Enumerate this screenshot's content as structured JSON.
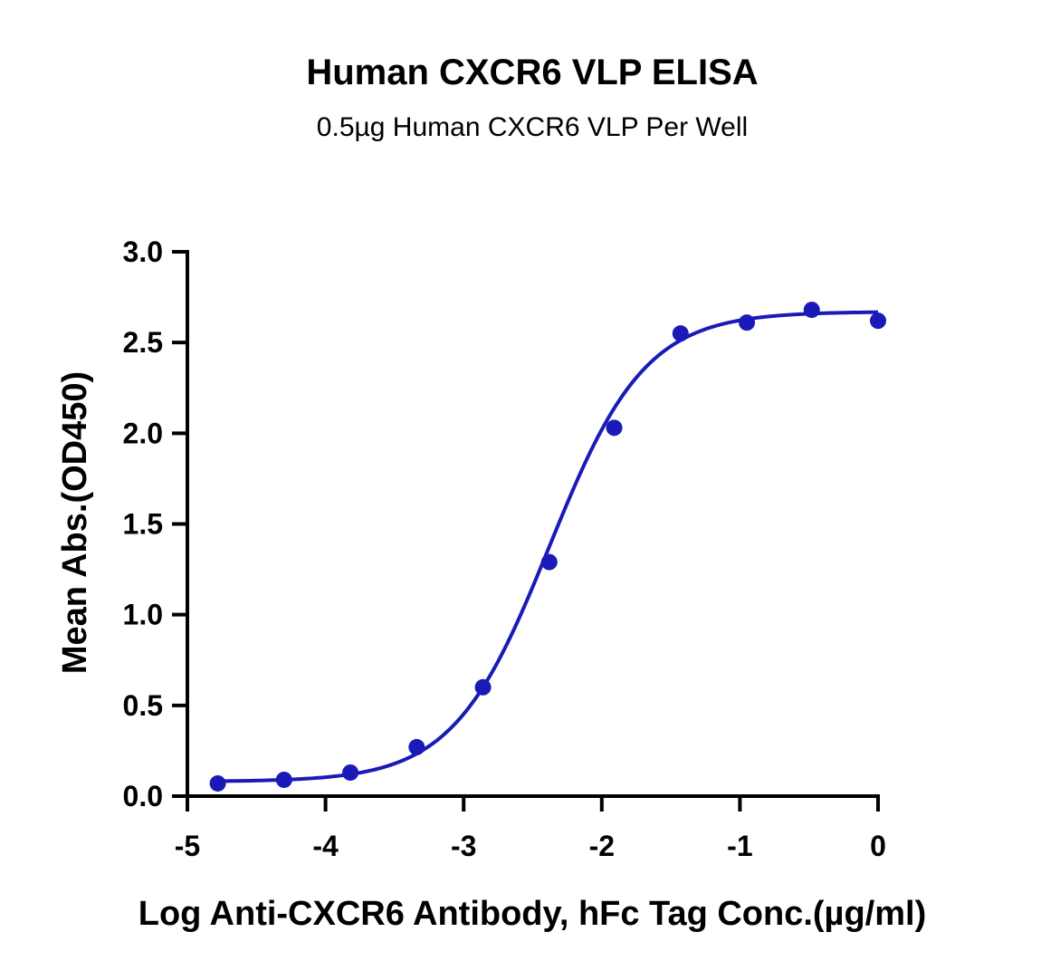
{
  "chart_data": {
    "type": "scatter",
    "title": "Human CXCR6 VLP ELISA",
    "subtitle": "0.5µg Human CXCR6 VLP Per Well",
    "xlabel": "Log Anti-CXCR6 Antibody, hFc Tag Conc.(µg/ml)",
    "ylabel": "Mean Abs.(OD450)",
    "xlim": [
      -5,
      0
    ],
    "ylim": [
      0,
      3
    ],
    "x_ticks": [
      -5,
      -4,
      -3,
      -2,
      -1,
      0
    ],
    "x_tick_labels": [
      "-5",
      "-4",
      "-3",
      "-2",
      "-1",
      "0"
    ],
    "y_ticks": [
      0,
      0.5,
      1,
      1.5,
      2,
      2.5,
      3
    ],
    "y_tick_labels": [
      "0.0",
      "0.5",
      "1.0",
      "1.5",
      "2.0",
      "2.5",
      "3.0"
    ],
    "grid": false,
    "legend": "none",
    "series": [
      {
        "x": [
          -4.78,
          -4.3,
          -3.82,
          -3.34,
          -2.86,
          -2.38,
          -1.91,
          -1.43,
          -0.95,
          -0.48,
          0.0
        ],
        "y": [
          0.07,
          0.09,
          0.13,
          0.27,
          0.6,
          1.29,
          2.03,
          2.55,
          2.61,
          2.68,
          2.62
        ],
        "fit": {
          "model": "4PL",
          "bottom": 0.08,
          "top": 2.67,
          "logEC50": -2.38,
          "hill": 1.25
        },
        "color": "#1a1ab8"
      }
    ]
  }
}
